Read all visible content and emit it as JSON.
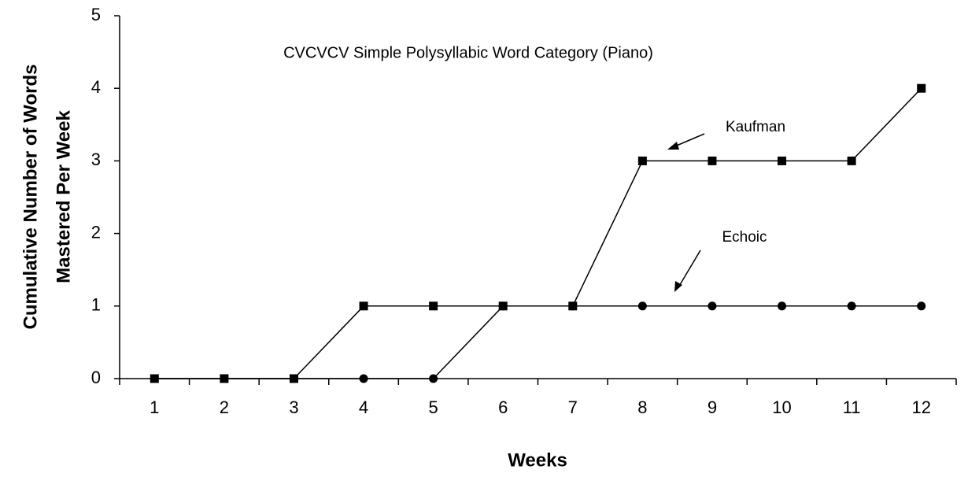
{
  "chart_data": {
    "type": "line",
    "title": "CVCVCV Simple Polysyllabic Word Category (Piano)",
    "x_label": "Weeks",
    "y_label": [
      "Cumulative Number of Words",
      "Mastered Per Week"
    ],
    "categories": [
      1,
      2,
      3,
      4,
      5,
      6,
      7,
      8,
      9,
      10,
      11,
      12
    ],
    "series": [
      {
        "name": "Kaufman",
        "color": "#000000",
        "marker": "square",
        "values": [
          0,
          0,
          0,
          1,
          1,
          1,
          1,
          3,
          3,
          3,
          3,
          4
        ]
      },
      {
        "name": "Echoic",
        "color": "#000000",
        "marker": "circle",
        "values": [
          0,
          0,
          0,
          0,
          0,
          1,
          1,
          1,
          1,
          1,
          1,
          1
        ]
      }
    ],
    "ylim": [
      0,
      5
    ],
    "yticks": [
      0,
      1,
      2,
      3,
      4,
      5
    ],
    "grid": false
  }
}
